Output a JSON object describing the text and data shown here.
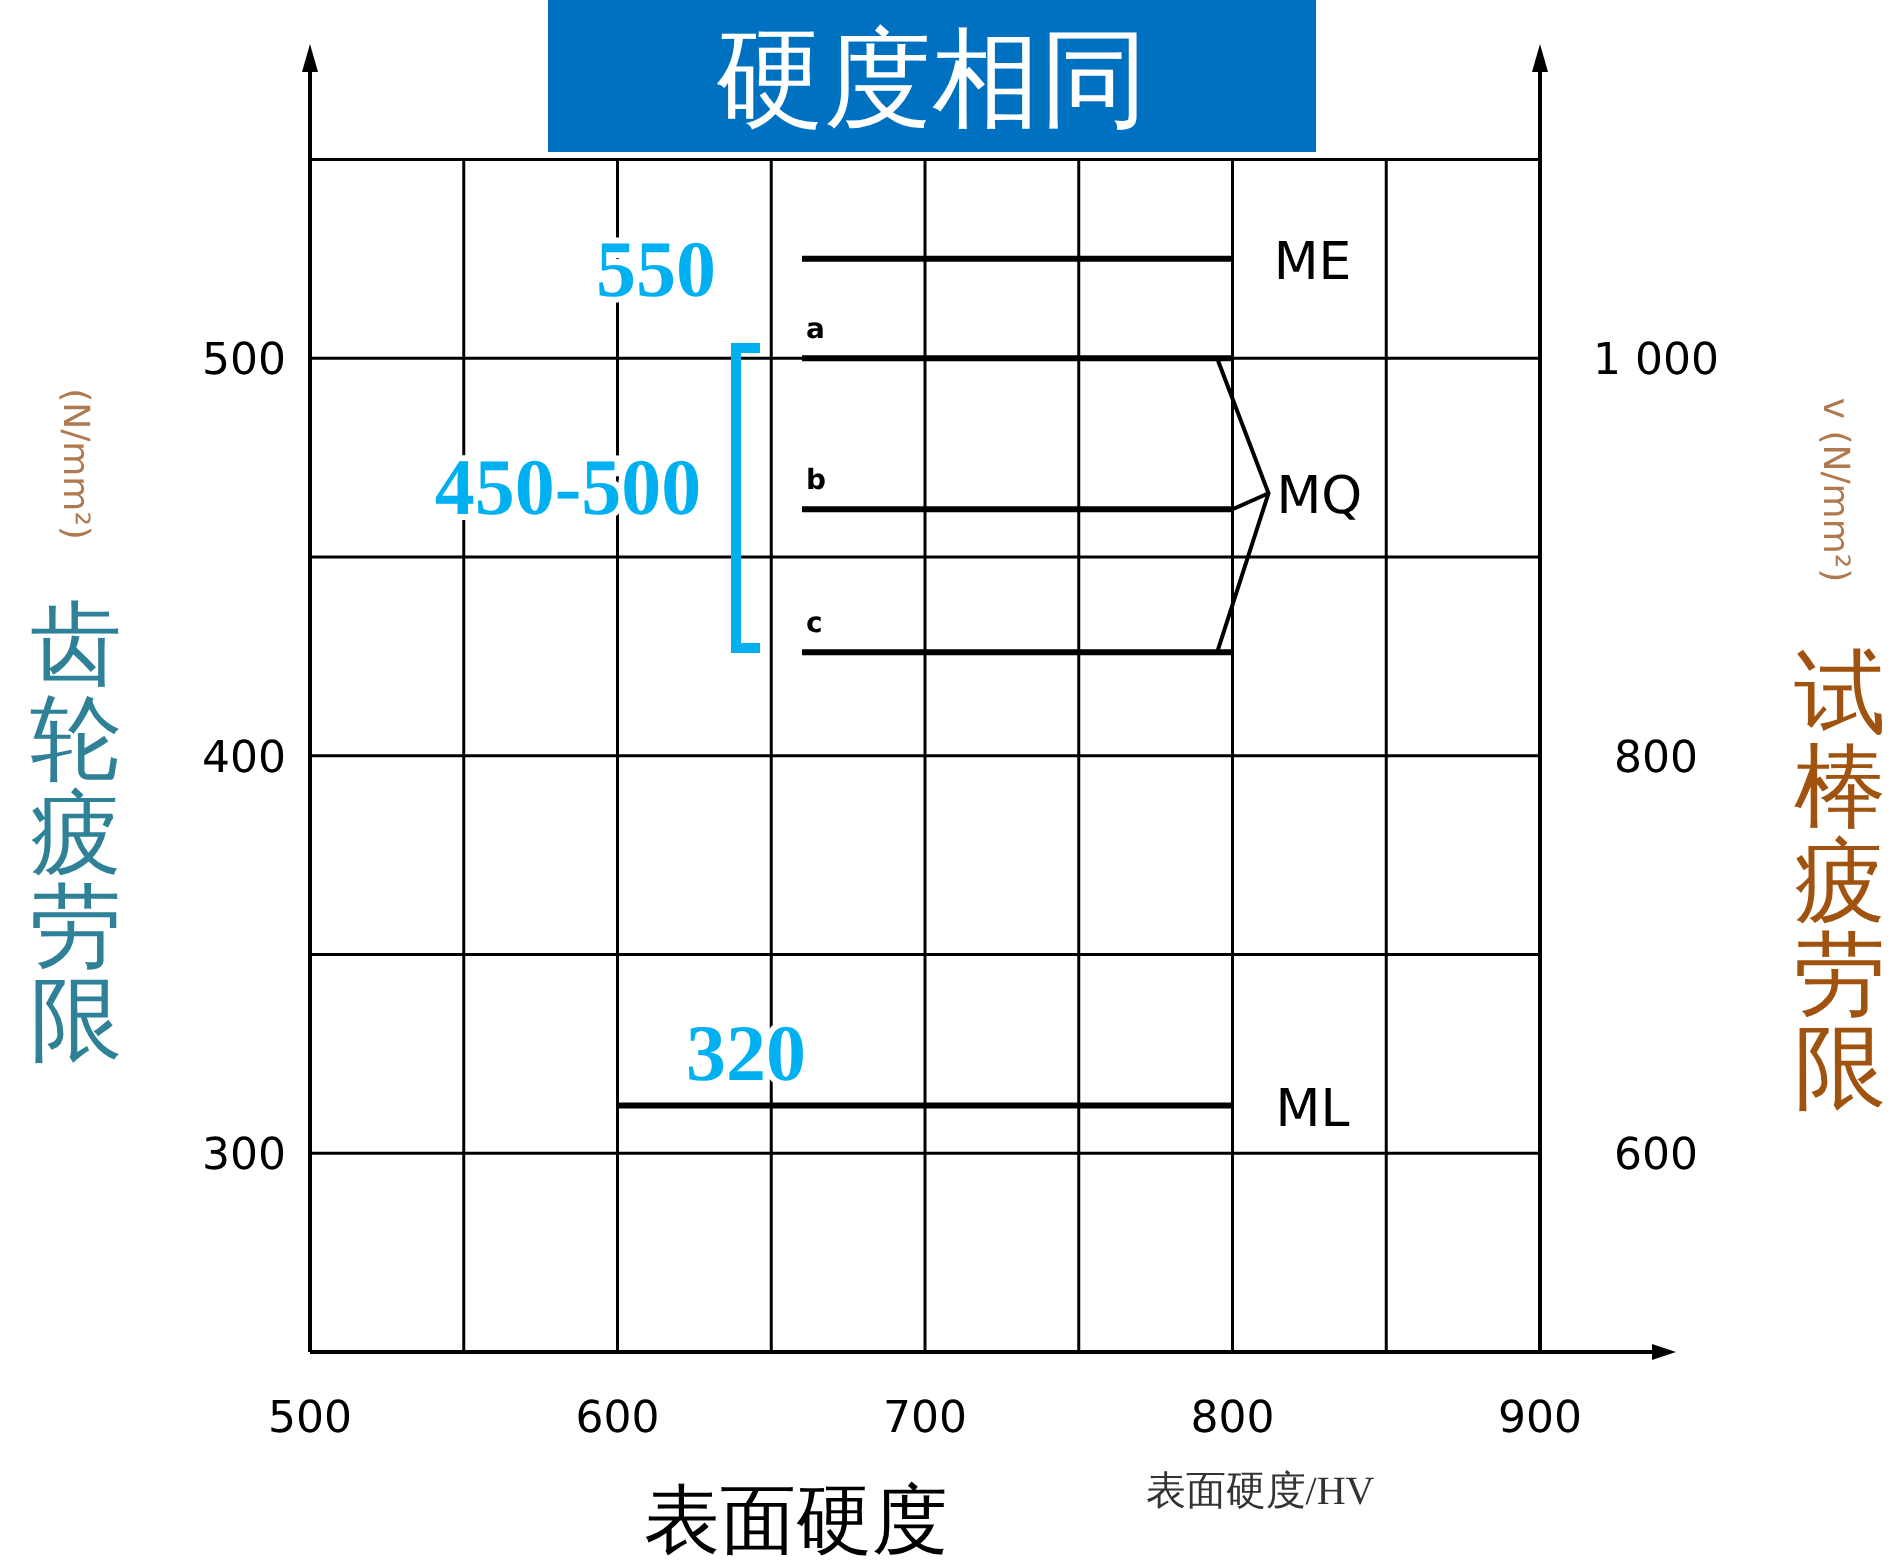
{
  "chart_data": {
    "type": "line",
    "title": "硬度相同",
    "xlabel": "表面硬度/HV",
    "ylabel": "齿轮疲劳限",
    "y2label": "试棒疲劳限",
    "xlim": [
      500,
      900
    ],
    "xticks": [
      500,
      {
        "value": 550,
        "label": null
      },
      600,
      {
        "value": 650,
        "label": null
      },
      700,
      {
        "value": 750,
        "label": null
      },
      800,
      {
        "value": 850,
        "label": null
      },
      900
    ],
    "ylim": [
      250,
      572
    ],
    "yticks": [
      300,
      {
        "value": 350,
        "label": null
      },
      400,
      {
        "value": 450,
        "label": null
      },
      500,
      {
        "value": 550,
        "label": null
      }
    ],
    "y2lim": [
      500,
      1144
    ],
    "y2ticks": [
      600,
      800,
      {
        "value": 1000,
        "label": "1 000"
      }
    ],
    "grid": true,
    "marker": "none",
    "line_style": "solid",
    "series": [
      {
        "name": "ME",
        "color": "#000000",
        "x": [
          660,
          800
        ],
        "values": [
          525,
          525
        ]
      },
      {
        "name": "a",
        "color": "#000000",
        "x": [
          660,
          800
        ],
        "values": [
          500,
          500
        ]
      },
      {
        "name": "b",
        "color": "#000000",
        "x": [
          660,
          800
        ],
        "values": [
          462,
          462
        ]
      },
      {
        "name": "c",
        "color": "#000000",
        "x": [
          660,
          800
        ],
        "values": [
          426,
          426
        ]
      },
      {
        "name": "ML",
        "color": "#000000",
        "x": [
          600,
          800
        ],
        "values": [
          312,
          312
        ]
      }
    ],
    "annotations": [
      "550",
      "450-500",
      "320",
      "MQ",
      "表面硬度",
      "(N/mm²)",
      "v (N/mm²)"
    ]
  }
}
